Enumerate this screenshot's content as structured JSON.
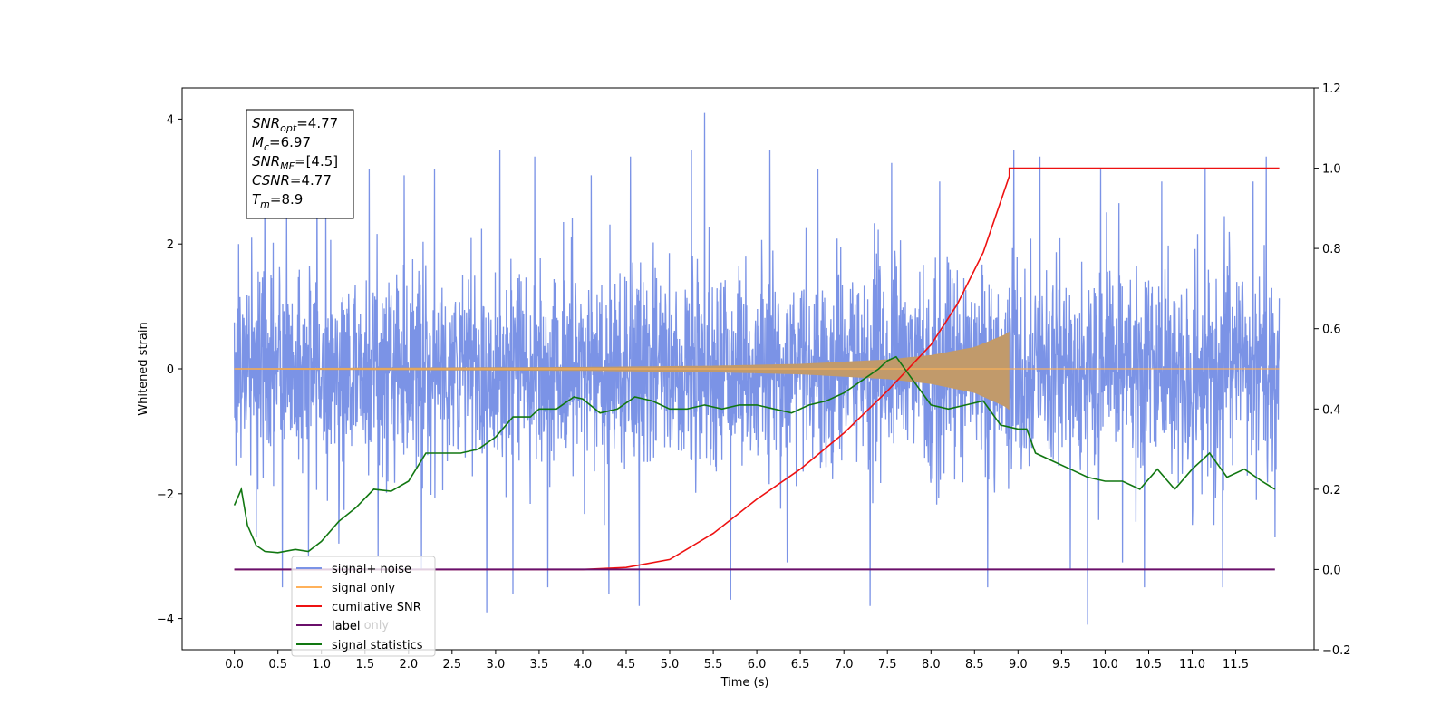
{
  "chart_data": {
    "type": "line",
    "xlabel": "Time (s)",
    "ylabel_left": "Whitened strain",
    "ylabel_right": "",
    "xlim": [
      -0.6,
      12.4
    ],
    "ylim_left": [
      -4.5,
      4.5
    ],
    "ylim_right": [
      -0.2,
      1.2
    ],
    "x_ticks": [
      0.0,
      0.5,
      1.0,
      1.5,
      2.0,
      2.5,
      3.0,
      3.5,
      4.0,
      4.5,
      5.0,
      5.5,
      6.0,
      6.5,
      7.0,
      7.5,
      8.0,
      8.5,
      9.0,
      9.5,
      10.0,
      10.5,
      11.0,
      11.5
    ],
    "x_tick_labels": [
      "0.0",
      "0.5",
      "1.0",
      "1.5",
      "2.0",
      "2.5",
      "3.0",
      "3.5",
      "4.0",
      "4.5",
      "5.0",
      "5.5",
      "6.0",
      "6.5",
      "7.0",
      "7.5",
      "8.0",
      "8.5",
      "9.0",
      "9.5",
      "10.0",
      "10.5",
      "11.0",
      "11.5"
    ],
    "y_ticks_left": [
      -4,
      -2,
      0,
      2,
      4
    ],
    "y_tick_labels_left": [
      "−4",
      "−2",
      "0",
      "2",
      "4"
    ],
    "y_ticks_right": [
      -0.2,
      0.0,
      0.2,
      0.4,
      0.6,
      0.8,
      1.0,
      1.2
    ],
    "y_tick_labels_right": [
      "−0.2",
      "0.0",
      "0.2",
      "0.4",
      "0.6",
      "0.8",
      "1.0",
      "1.2"
    ],
    "grid": false,
    "legend_position": "bottom-left",
    "noise": {
      "x_range": [
        0.0,
        12.0
      ],
      "spikes": [
        [
          0.05,
          2.0
        ],
        [
          0.2,
          2.1
        ],
        [
          0.25,
          -2.7
        ],
        [
          0.35,
          2.9
        ],
        [
          0.55,
          -3.5
        ],
        [
          0.6,
          2.6
        ],
        [
          0.85,
          -3.0
        ],
        [
          0.95,
          3.2
        ],
        [
          1.2,
          -2.8
        ],
        [
          1.55,
          3.2
        ],
        [
          1.65,
          -3.0
        ],
        [
          1.95,
          3.1
        ],
        [
          2.15,
          -3.2
        ],
        [
          2.3,
          3.2
        ],
        [
          2.9,
          -3.9
        ],
        [
          3.05,
          3.5
        ],
        [
          3.2,
          -3.6
        ],
        [
          3.45,
          3.4
        ],
        [
          3.6,
          -3.5
        ],
        [
          4.1,
          3.1
        ],
        [
          4.3,
          -3.6
        ],
        [
          4.55,
          3.4
        ],
        [
          4.65,
          -3.8
        ],
        [
          5.25,
          3.5
        ],
        [
          5.4,
          4.1
        ],
        [
          5.7,
          -3.7
        ],
        [
          6.15,
          3.5
        ],
        [
          6.35,
          -3.1
        ],
        [
          6.7,
          3.2
        ],
        [
          7.3,
          -3.8
        ],
        [
          7.55,
          3.3
        ],
        [
          8.1,
          3.0
        ],
        [
          8.65,
          -3.5
        ],
        [
          8.95,
          3.5
        ],
        [
          9.25,
          3.4
        ],
        [
          9.6,
          -3.2
        ],
        [
          9.8,
          -4.1
        ],
        [
          9.95,
          3.2
        ],
        [
          10.2,
          -3.1
        ],
        [
          10.45,
          -3.5
        ],
        [
          10.65,
          3.0
        ],
        [
          11.15,
          3.2
        ],
        [
          11.35,
          -3.5
        ],
        [
          11.7,
          3.0
        ],
        [
          11.85,
          3.4
        ],
        [
          11.95,
          -2.7
        ]
      ],
      "spike_ranges": [
        [
          0.0,
          0.1,
          -2.0,
          2.0
        ],
        [
          0.1,
          12.0,
          -2.5,
          2.8
        ]
      ]
    },
    "signal_envelope": [
      [
        0.0,
        0.01
      ],
      [
        2.0,
        0.02
      ],
      [
        4.0,
        0.03
      ],
      [
        5.5,
        0.05
      ],
      [
        6.5,
        0.08
      ],
      [
        7.5,
        0.15
      ],
      [
        8.0,
        0.22
      ],
      [
        8.5,
        0.35
      ],
      [
        8.85,
        0.55
      ],
      [
        8.9,
        0.6
      ]
    ],
    "series": [
      {
        "name": "signal+ noise",
        "axis": "left",
        "color": "#7b93e6"
      },
      {
        "name": "signal only",
        "axis": "left",
        "color": "#ffb15a"
      },
      {
        "name": "cumilative SNR",
        "axis": "right",
        "color": "#ee1111",
        "x": [
          0.0,
          4.0,
          4.5,
          5.0,
          5.5,
          6.0,
          6.5,
          7.0,
          7.5,
          8.0,
          8.3,
          8.6,
          8.9,
          8.9,
          12.0
        ],
        "y": [
          0.0,
          0.0,
          0.005,
          0.025,
          0.09,
          0.175,
          0.25,
          0.34,
          0.445,
          0.56,
          0.66,
          0.79,
          0.98,
          1.0,
          1.0
        ]
      },
      {
        "name": "label",
        "axis": "right",
        "color": "#6a0f6a",
        "x": [
          0.0,
          11.95
        ],
        "y": [
          0.0,
          0.0
        ]
      },
      {
        "name": "signal statistics",
        "axis": "right",
        "color": "#117711",
        "x": [
          0.0,
          0.08,
          0.15,
          0.25,
          0.35,
          0.5,
          0.7,
          0.85,
          1.0,
          1.2,
          1.4,
          1.6,
          1.8,
          2.0,
          2.2,
          2.4,
          2.6,
          2.8,
          3.0,
          3.2,
          3.4,
          3.5,
          3.7,
          3.9,
          4.0,
          4.2,
          4.4,
          4.6,
          4.8,
          5.0,
          5.2,
          5.4,
          5.6,
          5.8,
          6.0,
          6.2,
          6.4,
          6.6,
          6.8,
          7.0,
          7.2,
          7.4,
          7.5,
          7.6,
          7.8,
          8.0,
          8.2,
          8.4,
          8.6,
          8.8,
          9.0,
          9.1,
          9.2,
          9.4,
          9.6,
          9.8,
          10.0,
          10.2,
          10.4,
          10.6,
          10.8,
          11.0,
          11.2,
          11.4,
          11.6,
          11.8,
          11.95
        ],
        "y": [
          0.16,
          0.2,
          0.11,
          0.06,
          0.045,
          0.042,
          0.05,
          0.045,
          0.07,
          0.12,
          0.155,
          0.2,
          0.195,
          0.22,
          0.29,
          0.29,
          0.29,
          0.3,
          0.33,
          0.38,
          0.38,
          0.4,
          0.4,
          0.43,
          0.425,
          0.39,
          0.4,
          0.43,
          0.42,
          0.4,
          0.4,
          0.41,
          0.4,
          0.41,
          0.41,
          0.4,
          0.39,
          0.41,
          0.42,
          0.44,
          0.47,
          0.5,
          0.52,
          0.53,
          0.47,
          0.41,
          0.4,
          0.41,
          0.42,
          0.36,
          0.35,
          0.35,
          0.29,
          0.27,
          0.25,
          0.23,
          0.22,
          0.22,
          0.2,
          0.25,
          0.2,
          0.25,
          0.29,
          0.23,
          0.25,
          0.22,
          0.2
        ]
      }
    ],
    "info_box": [
      {
        "sym": "SNR",
        "sub": "opt",
        "val": "=4.77"
      },
      {
        "sym": "M",
        "sub": "c",
        "val": "=6.97"
      },
      {
        "sym": "SNR",
        "sub": "MF",
        "val": "=[4.5]"
      },
      {
        "sym": "CSNR",
        "sub": "",
        "val": "=4.77"
      },
      {
        "sym": "T",
        "sub": "m",
        "val": "=8.9"
      }
    ],
    "legend": [
      "signal+ noise",
      "signal only",
      "cumilative SNR",
      "label",
      "signal statistics"
    ],
    "legend_overlap_text": "label only"
  }
}
